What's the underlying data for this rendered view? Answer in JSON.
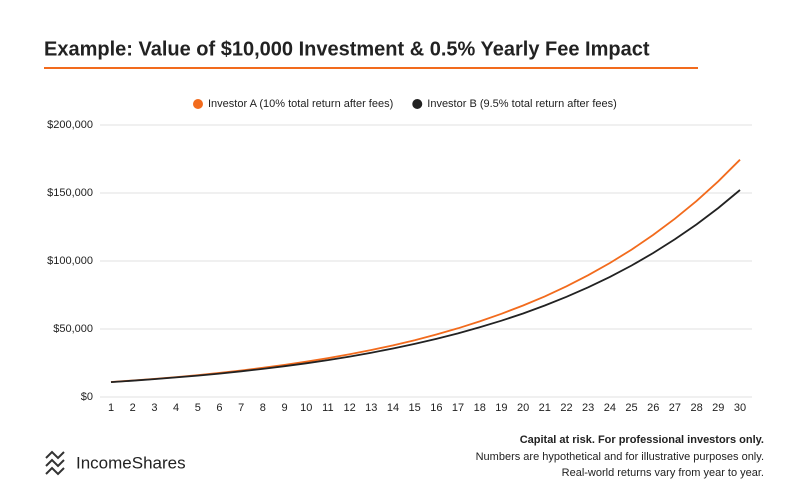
{
  "chart_data": {
    "type": "line",
    "title": "Example: Value of $10,000 Investment & 0.5% Yearly Fee Impact",
    "categories": [
      1,
      2,
      3,
      4,
      5,
      6,
      7,
      8,
      9,
      10,
      11,
      12,
      13,
      14,
      15,
      16,
      17,
      18,
      19,
      20,
      21,
      22,
      23,
      24,
      25,
      26,
      27,
      28,
      29,
      30
    ],
    "series": [
      {
        "name": "Investor A (10% total return after fees)",
        "color": "#f26b1d",
        "values": [
          11000,
          12100,
          13310,
          14641,
          16105,
          17716,
          19487,
          21436,
          23579,
          25937,
          28531,
          31384,
          34523,
          37975,
          41772,
          45950,
          50545,
          55599,
          61159,
          67275,
          74002,
          81403,
          89543,
          98497,
          108347,
          119182,
          131100,
          144210,
          158631,
          174494
        ]
      },
      {
        "name": "Investor B (9.5% total return after fees)",
        "color": "#222222",
        "values": [
          10950,
          11990,
          13129,
          14377,
          15742,
          17238,
          18876,
          20669,
          22632,
          24782,
          27137,
          29715,
          32538,
          35629,
          39013,
          42719,
          46778,
          51222,
          56088,
          61416,
          67251,
          73640,
          80635,
          88296,
          96684,
          105869,
          115926,
          126939,
          138999,
          152204
        ]
      }
    ],
    "ylim": [
      0,
      200000
    ],
    "yticks": [
      {
        "value": 0,
        "label": "$0"
      },
      {
        "value": 50000,
        "label": "$50,000"
      },
      {
        "value": 100000,
        "label": "$100,000"
      },
      {
        "value": 150000,
        "label": "$150,000"
      },
      {
        "value": 200000,
        "label": "$200,000"
      }
    ],
    "grid": true,
    "legend": "top"
  },
  "footer": {
    "brand": "IncomeShares",
    "notes": [
      "Capital at risk. For professional investors only.",
      "Numbers are hypothetical and for illustrative purposes only.",
      "Real-world returns vary from year to year."
    ]
  }
}
